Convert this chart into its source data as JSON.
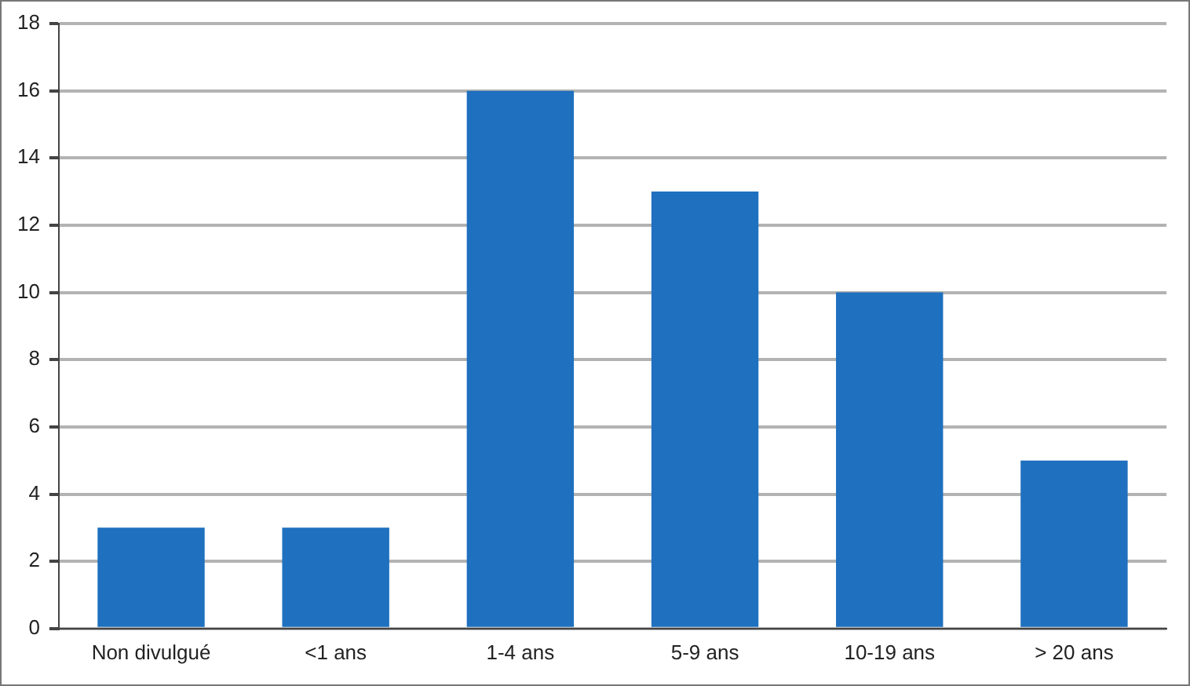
{
  "chart_data": {
    "type": "bar",
    "categories": [
      "Non divulgué",
      "<1 ans",
      "1-4 ans",
      "5-9 ans",
      "10-19 ans",
      "> 20 ans"
    ],
    "values": [
      3,
      3,
      16,
      13,
      10,
      5
    ],
    "color": "#1f70bf",
    "ylim": [
      0,
      18
    ],
    "yticks": [
      0,
      2,
      4,
      6,
      8,
      10,
      12,
      14,
      16,
      18
    ],
    "grid": "y",
    "legend": false
  }
}
